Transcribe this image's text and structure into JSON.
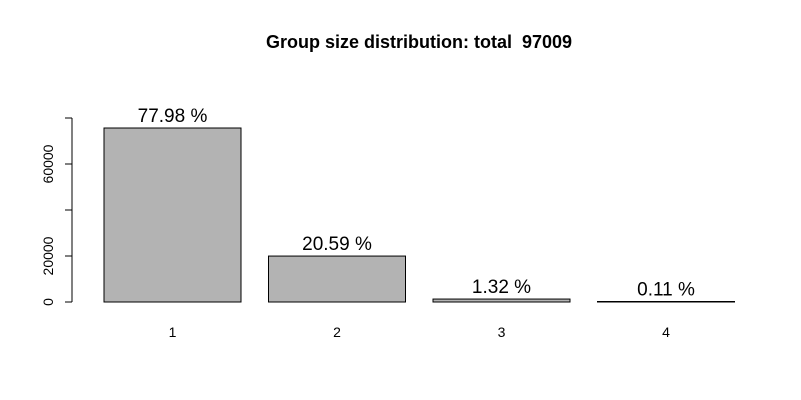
{
  "chart_data": {
    "type": "bar",
    "title": "Group size distribution: total  97009",
    "categories": [
      "1",
      "2",
      "3",
      "4"
    ],
    "values": [
      75648,
      19973,
      1281,
      107
    ],
    "bar_labels": [
      "77.98 %",
      "20.59 %",
      "1.32 %",
      "0.11 %"
    ],
    "xlabel": "",
    "ylabel": "",
    "ylim": [
      0,
      80000
    ],
    "y_ticks": [
      0,
      20000,
      40000,
      60000,
      80000
    ],
    "y_tick_labels": [
      "0",
      "20000",
      "",
      "60000",
      ""
    ],
    "grid": false,
    "legend": "none",
    "colors": {
      "bar_fill": "#b3b3b3",
      "bar_stroke": "#000000"
    }
  }
}
